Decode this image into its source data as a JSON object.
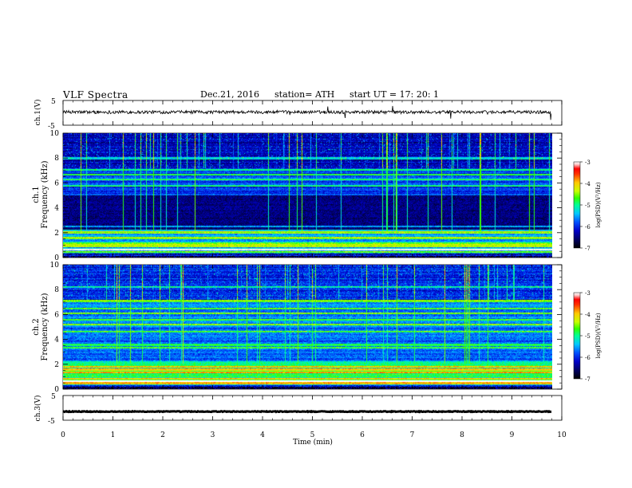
{
  "header": {
    "title": "VLF  Spectra",
    "date": "Dec.21, 2016",
    "station": "station= ATH",
    "start_ut": "start  UT  =    17: 20: 1"
  },
  "colors": {
    "trace": "#000000",
    "colormap": [
      "#000000",
      "#000050",
      "#0000c8",
      "#0050ff",
      "#00c8ff",
      "#00ff96",
      "#32ff00",
      "#c8ff00",
      "#ffc800",
      "#ff3200",
      "#ff0000",
      "#ffc8c8",
      "#ffffff"
    ]
  },
  "chart_data": [
    {
      "type": "line",
      "ylabel": "ch.1(V)",
      "ylim": [
        -5,
        5
      ],
      "yticks": [
        "5",
        "-5"
      ],
      "xlim": [
        0,
        10
      ],
      "note_level": 0.3
    },
    {
      "type": "heatmap",
      "ylabel_top": "ch.1",
      "ylabel": "Frequency  (kHz)",
      "ylim": [
        0,
        10
      ],
      "yticks": [
        "10",
        "8",
        "6",
        "4",
        "2",
        "0"
      ],
      "xlim": [
        0,
        10
      ],
      "data_end_min": 9.8,
      "colorbar": {
        "label": "log(PSD)(V²/Hz)",
        "range": [
          -7,
          -3
        ],
        "ticks": [
          "-3",
          "-4",
          "-5",
          "-6",
          "-7"
        ]
      }
    },
    {
      "type": "heatmap",
      "ylabel_top": "ch.2",
      "ylabel": "Frequency  (kHz)",
      "ylim": [
        0,
        10
      ],
      "yticks": [
        "10",
        "8",
        "6",
        "4",
        "2",
        "0"
      ],
      "xlim": [
        0,
        10
      ],
      "data_end_min": 9.8,
      "colorbar": {
        "label": "log(PSD)(V²/Hz)",
        "range": [
          -7,
          -3
        ],
        "ticks": [
          "-3",
          "-4",
          "-5",
          "-6",
          "-7"
        ]
      }
    },
    {
      "type": "line",
      "ylabel": "ch.3(V)",
      "ylim": [
        -5,
        5
      ],
      "yticks": [
        "5",
        "-5"
      ],
      "xlim": [
        0,
        10
      ],
      "level": -1.5
    }
  ],
  "x_axis": {
    "label": "Time  (min)",
    "ticks": [
      "0",
      "1",
      "2",
      "3",
      "4",
      "5",
      "6",
      "7",
      "8",
      "9",
      "10"
    ]
  }
}
